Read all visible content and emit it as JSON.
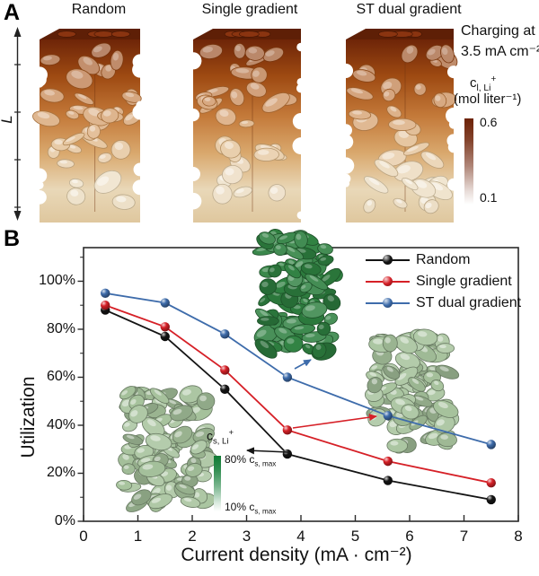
{
  "panel_a": {
    "label": "A",
    "structure_titles": [
      "Random",
      "Single gradient",
      "ST dual gradient"
    ],
    "length_label": "L",
    "charging_note": {
      "line1": "Charging at",
      "line2": "3.5 mA cm⁻²"
    },
    "colorbar": {
      "symbol": {
        "base": "c",
        "sub": "l, Li",
        "sup": "+"
      },
      "unit": "(mol liter⁻¹)",
      "max_label": "0.6",
      "min_label": "0.1",
      "top_color": "#6d2207",
      "bottom_color": "#ffffff"
    }
  },
  "panel_b": {
    "label": "B",
    "inset_colorbar": {
      "symbol": {
        "base": "c",
        "sub": "s, Li",
        "sup": "+"
      },
      "max": {
        "text": "80% c",
        "sub": "s, max"
      },
      "min": {
        "text": "10% c",
        "sub": "s, max"
      },
      "top_color": "#0e7a33",
      "bottom_color": "#ffffff"
    }
  },
  "chart_data": {
    "type": "line",
    "x": [
      0.4,
      1.5,
      2.6,
      3.75,
      5.6,
      7.5
    ],
    "series": [
      {
        "name": "Random",
        "color": "#141414",
        "values": [
          88,
          77,
          55,
          28,
          17,
          9
        ]
      },
      {
        "name": "Single gradient",
        "color": "#d62027",
        "values": [
          90,
          81,
          63,
          38,
          25,
          16
        ]
      },
      {
        "name": "ST dual gradient",
        "color": "#3e6cab",
        "values": [
          95,
          91,
          78,
          60,
          44,
          32
        ]
      }
    ],
    "xlabel": "Current density (mA · cm⁻²)",
    "ylabel": "Utilization",
    "xlim": [
      0,
      8
    ],
    "ylim": [
      0,
      114
    ],
    "x_ticks": [
      0,
      1,
      2,
      3,
      4,
      5,
      6,
      7,
      8
    ],
    "y_major_ticks": [
      0,
      20,
      40,
      60,
      80,
      100
    ],
    "y_tick_labels": [
      "0%",
      "20%",
      "40%",
      "60%",
      "80%",
      "100%"
    ],
    "y_minor_step": 10,
    "legend_position": "top-right",
    "grid": false
  }
}
